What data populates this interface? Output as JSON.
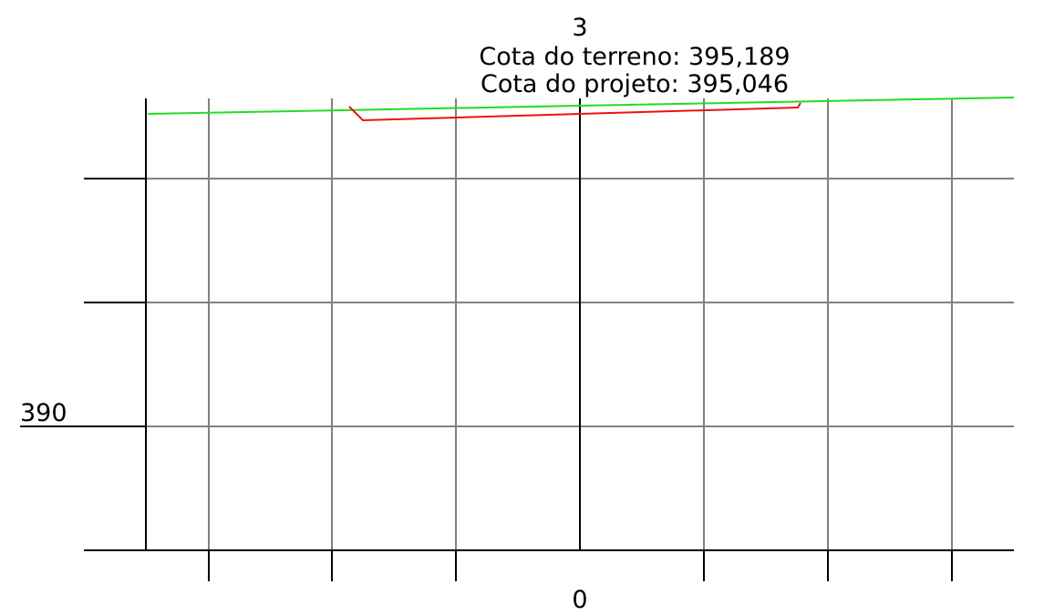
{
  "header": {
    "section": "3",
    "terrain_elevation": "Cota do terreno: 395,189",
    "project_elevation": "Cota do projeto: 395,046"
  },
  "axis": {
    "y_label": "390",
    "x_label": "0"
  }
}
